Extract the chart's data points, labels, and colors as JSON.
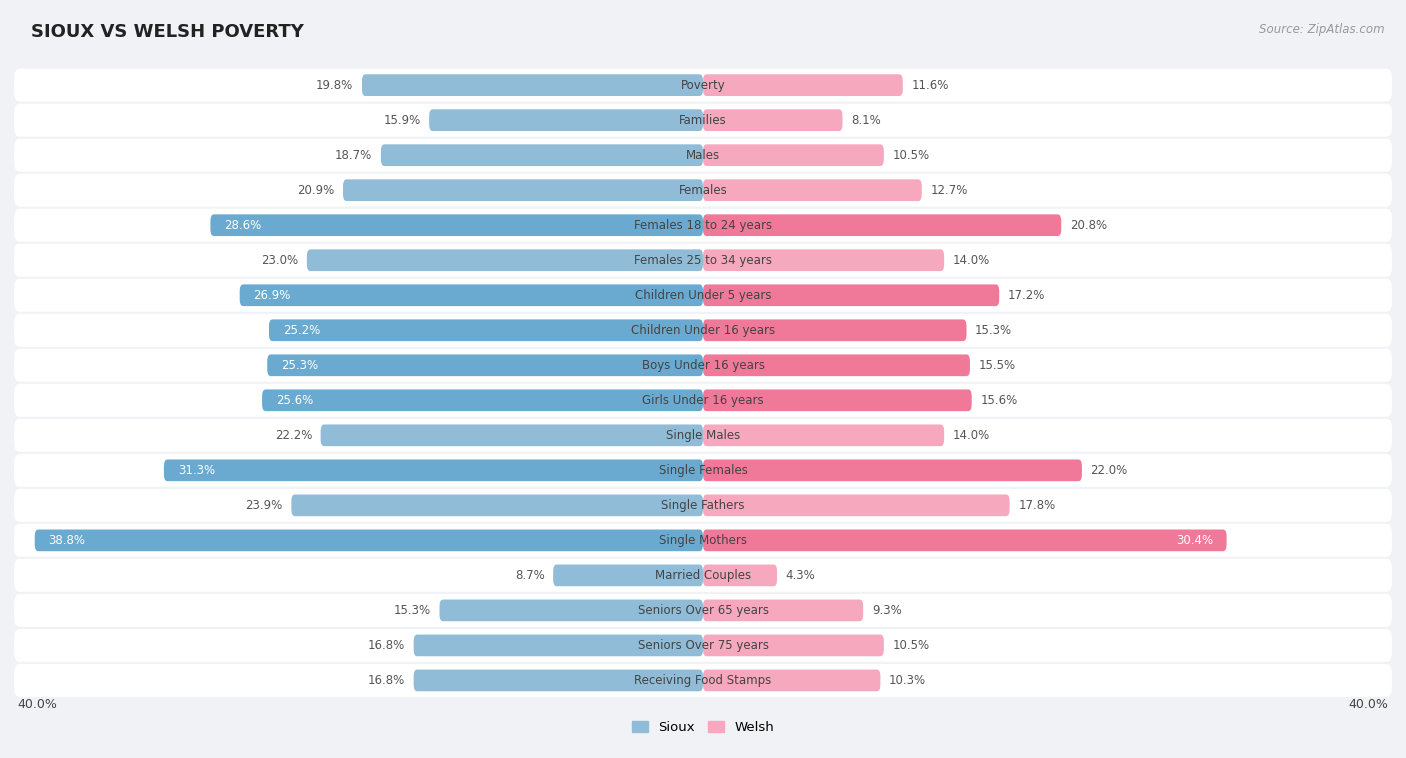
{
  "title": "SIOUX VS WELSH POVERTY",
  "source": "Source: ZipAtlas.com",
  "categories": [
    "Poverty",
    "Families",
    "Males",
    "Females",
    "Females 18 to 24 years",
    "Females 25 to 34 years",
    "Children Under 5 years",
    "Children Under 16 years",
    "Boys Under 16 years",
    "Girls Under 16 years",
    "Single Males",
    "Single Females",
    "Single Fathers",
    "Single Mothers",
    "Married Couples",
    "Seniors Over 65 years",
    "Seniors Over 75 years",
    "Receiving Food Stamps"
  ],
  "sioux": [
    19.8,
    15.9,
    18.7,
    20.9,
    28.6,
    23.0,
    26.9,
    25.2,
    25.3,
    25.6,
    22.2,
    31.3,
    23.9,
    38.8,
    8.7,
    15.3,
    16.8,
    16.8
  ],
  "welsh": [
    11.6,
    8.1,
    10.5,
    12.7,
    20.8,
    14.0,
    17.2,
    15.3,
    15.5,
    15.6,
    14.0,
    22.0,
    17.8,
    30.4,
    4.3,
    9.3,
    10.5,
    10.3
  ],
  "sioux_color_normal": "#90bcd8",
  "sioux_color_highlight": "#6aaad0",
  "welsh_color_normal": "#f5a8be",
  "welsh_color_highlight": "#f07898",
  "highlight_rows": [
    4,
    6,
    7,
    8,
    9,
    11,
    13
  ],
  "inside_label_threshold": 24.0,
  "bg_color": "#f0f2f5",
  "row_bg_color": "#ffffff",
  "axis_max": 40.0,
  "legend_labels": [
    "Sioux",
    "Welsh"
  ],
  "label_inside_color": "#ffffff",
  "label_outside_color": "#555555",
  "cat_label_color": "#444444",
  "cat_label_fontsize": 8.5,
  "val_label_fontsize": 8.5
}
